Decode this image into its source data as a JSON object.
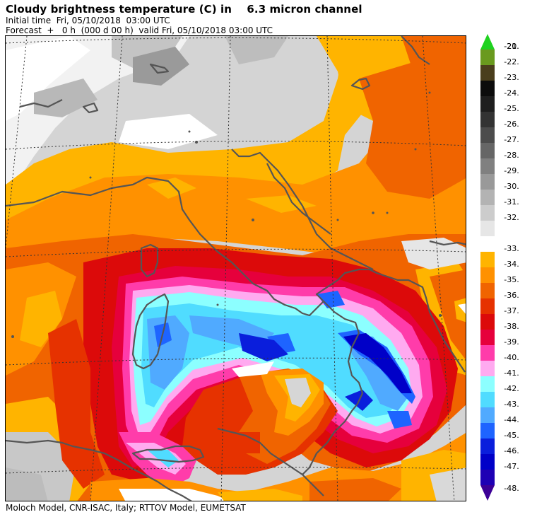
{
  "header": {
    "title": "Cloudy brightness temperature (C) in    6.3 micron channel",
    "initial_time": "Initial time  Fri, 05/10/2018  03:00 UTC",
    "forecast": "Forecast  +   0 h  (000 d 00 h)  valid Fri, 05/10/2018 03:00 UTC"
  },
  "footer": {
    "credit": "Moloch Model, CNR-ISAC, Italy; RTTOV Model, EUMETSAT"
  },
  "legend": {
    "items": [
      {
        "label": "-20.",
        "color": "#1fd21f"
      },
      {
        "label": "-21.",
        "color": "#6a9a1e"
      },
      {
        "label": "-22.",
        "color": "#4a3e1c"
      },
      {
        "label": "-23.",
        "color": "#0c0c0c"
      },
      {
        "label": "-24.",
        "color": "#1e1e1e"
      },
      {
        "label": "-25.",
        "color": "#333333"
      },
      {
        "label": "-26.",
        "color": "#4c4c4c"
      },
      {
        "label": "-27.",
        "color": "#666666"
      },
      {
        "label": "-28.",
        "color": "#808080"
      },
      {
        "label": "-29.",
        "color": "#999999"
      },
      {
        "label": "-30.",
        "color": "#b3b3b3"
      },
      {
        "label": "-31.",
        "color": "#cccccc"
      },
      {
        "label": "-32.",
        "color": "#e6e6e6"
      },
      {
        "label": "-33.",
        "color": "#ffb400"
      },
      {
        "label": "-34.",
        "color": "#ff9100"
      },
      {
        "label": "-35.",
        "color": "#f06400"
      },
      {
        "label": "-36.",
        "color": "#e63200"
      },
      {
        "label": "-37.",
        "color": "#dc0a0a"
      },
      {
        "label": "-38.",
        "color": "#e6003c"
      },
      {
        "label": "-39.",
        "color": "#ff3caa"
      },
      {
        "label": "-40.",
        "color": "#ffaaf0"
      },
      {
        "label": "-41.",
        "color": "#8cffff"
      },
      {
        "label": "-42.",
        "color": "#50dcff"
      },
      {
        "label": "-43.",
        "color": "#50aaff"
      },
      {
        "label": "-44.",
        "color": "#1e64ff"
      },
      {
        "label": "-45.",
        "color": "#0a1edc"
      },
      {
        "label": "-46.",
        "color": "#0000c8"
      },
      {
        "label": "-47.",
        "color": "#1e00b4"
      },
      {
        "label": "-48.",
        "color": "#3c0096"
      }
    ]
  },
  "colors": {
    "background_grey": "#d9d9d9",
    "coastline": "#555555",
    "grid": "#333333"
  }
}
